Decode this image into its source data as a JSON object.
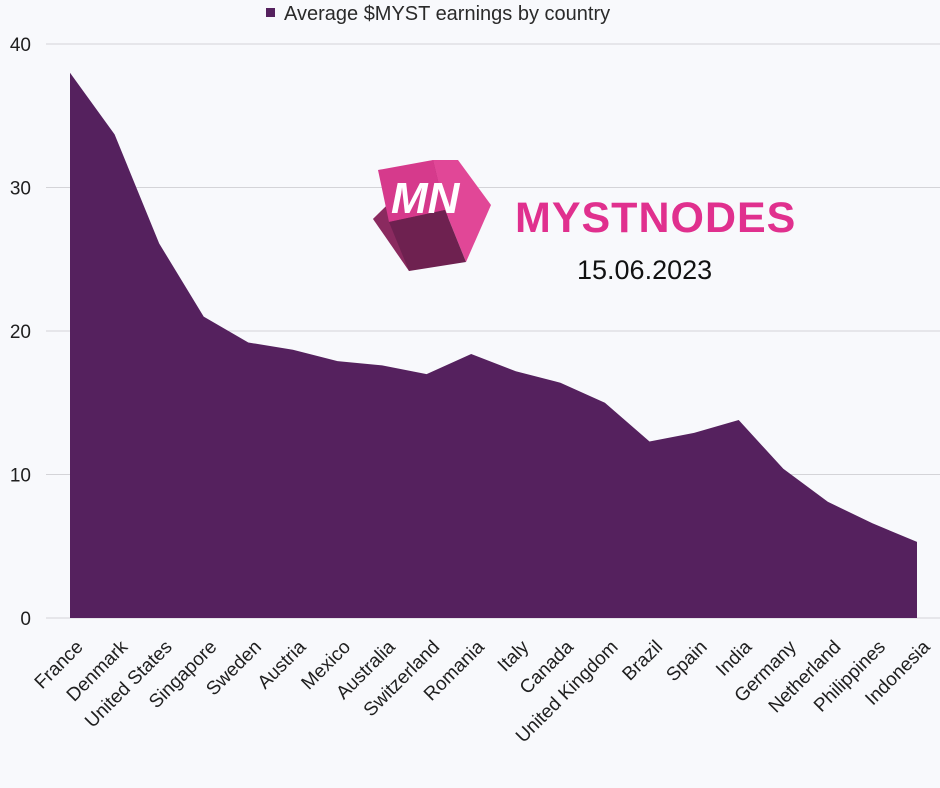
{
  "chart_data": {
    "type": "area",
    "legend": {
      "label": "Average $MYST earnings by country",
      "position": "top-center"
    },
    "categories": [
      "France",
      "Denmark",
      "United States",
      "Singapore",
      "Sweden",
      "Austria",
      "Mexico",
      "Australia",
      "Switzerland",
      "Romania",
      "Italy",
      "Canada",
      "United Kingdom",
      "Brazil",
      "Spain",
      "India",
      "Germany",
      "Netherland",
      "Philippines",
      "Indonesia"
    ],
    "series": [
      {
        "name": "Average $MYST earnings by country",
        "values": [
          38.0,
          33.7,
          26.1,
          21.0,
          19.2,
          18.7,
          17.9,
          17.6,
          17.0,
          18.4,
          17.2,
          16.4,
          15.0,
          12.3,
          12.9,
          13.8,
          10.4,
          8.1,
          6.6,
          5.3
        ]
      }
    ],
    "yticks": [
      "0",
      "10",
      "20",
      "30",
      "40"
    ],
    "ylim": [
      0,
      40
    ],
    "grid": true,
    "xlabel": "",
    "ylabel": ""
  },
  "watermark": {
    "logo_letters": "MN",
    "brand": "MYSTNODES",
    "date": "15.06.2023"
  },
  "colors": {
    "area": "#55215e",
    "grid": "#d4d4d8",
    "brand": "#e0308e",
    "background": "#f8f9fc"
  }
}
